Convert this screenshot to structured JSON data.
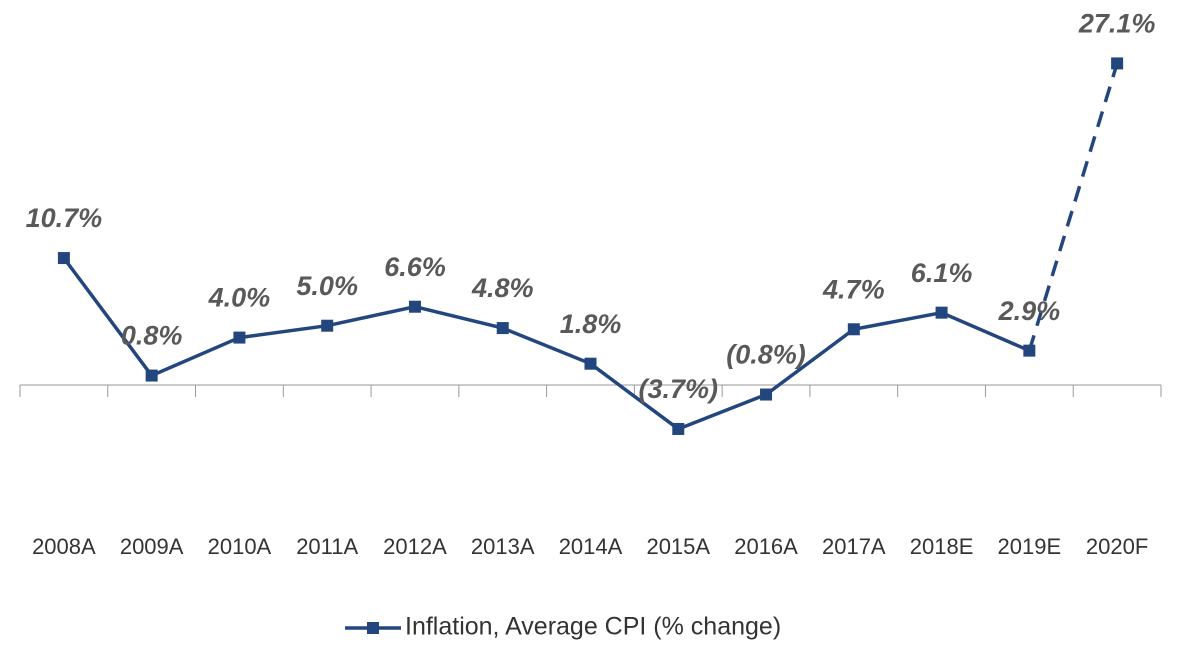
{
  "chart_data": {
    "type": "line",
    "categories": [
      "2008A",
      "2009A",
      "2010A",
      "2011A",
      "2012A",
      "2013A",
      "2014A",
      "2015A",
      "2016A",
      "2017A",
      "2018E",
      "2019E",
      "2020F"
    ],
    "series": [
      {
        "name": "Inflation, Average CPI (% change)",
        "color": "#23467e",
        "values": [
          10.7,
          0.8,
          4.0,
          5.0,
          6.6,
          4.8,
          1.8,
          -3.7,
          -0.8,
          4.7,
          6.1,
          2.9,
          27.1
        ],
        "value_labels": [
          "10.7%",
          "0.8%",
          "4.0%",
          "5.0%",
          "6.6%",
          "4.8%",
          "1.8%",
          "(3.7%)",
          "(0.8%)",
          "4.7%",
          "6.1%",
          "2.9%",
          "27.1%"
        ],
        "segment_styles": [
          "solid",
          "solid",
          "solid",
          "solid",
          "solid",
          "solid",
          "solid",
          "solid",
          "solid",
          "solid",
          "solid",
          "dashed"
        ]
      }
    ],
    "ylim": [
      -8,
      30
    ],
    "grid": false,
    "legend": "bottom"
  }
}
